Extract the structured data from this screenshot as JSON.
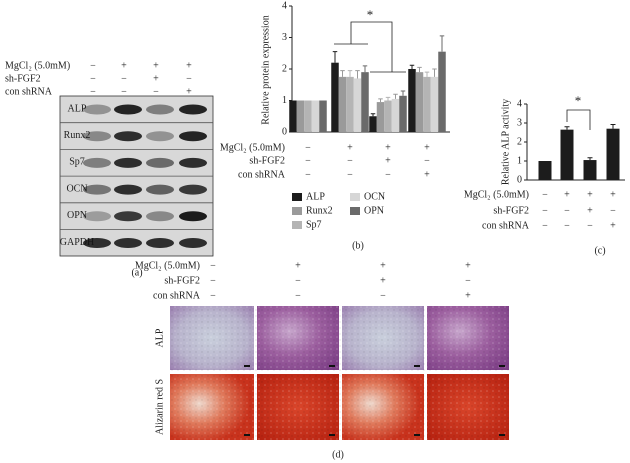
{
  "panel_a": {
    "conditions": [
      {
        "label": "MgCl₂ (5.0mM)",
        "signs": [
          "−",
          "+",
          "+",
          "+"
        ]
      },
      {
        "label": "sh-FGF2",
        "signs": [
          "−",
          "−",
          "+",
          "−"
        ]
      },
      {
        "label": "con shRNA",
        "signs": [
          "−",
          "−",
          "−",
          "+"
        ]
      }
    ],
    "blot_rows": [
      "ALP",
      "Runx2",
      "Sp7",
      "OCN",
      "OPN",
      "GAPDH"
    ],
    "label": "(a)"
  },
  "chart_data": [
    {
      "type": "bar",
      "y_label": "Relative protein expression",
      "ylim": [
        0,
        4
      ],
      "yticks": [
        0,
        1,
        2,
        3,
        4
      ],
      "conditions": [
        {
          "label": "MgCl₂ (5.0mM)",
          "signs": [
            "−",
            "+",
            "+",
            "+"
          ]
        },
        {
          "label": "sh-FGF2",
          "signs": [
            "−",
            "−",
            "+",
            "−"
          ]
        },
        {
          "label": "con shRNA",
          "signs": [
            "−",
            "−",
            "−",
            "+"
          ]
        }
      ],
      "series": [
        {
          "name": "ALP",
          "color": "#1c1c1c",
          "values": [
            1,
            2.2,
            0.5,
            2.0
          ],
          "errors": [
            0,
            0.35,
            0.08,
            0.12
          ]
        },
        {
          "name": "Runx2",
          "color": "#9a9a9a",
          "values": [
            1,
            1.75,
            0.95,
            1.9
          ],
          "errors": [
            0,
            0.2,
            0.1,
            0.15
          ]
        },
        {
          "name": "Sp7",
          "color": "#b4b4b4",
          "values": [
            1,
            1.75,
            1.0,
            1.75
          ],
          "errors": [
            0,
            0.2,
            0.1,
            0.15
          ]
        },
        {
          "name": "OCN",
          "color": "#d6d6d6",
          "values": [
            1,
            1.7,
            1.05,
            1.75
          ],
          "errors": [
            0,
            0.25,
            0.15,
            0.25
          ]
        },
        {
          "name": "OPN",
          "color": "#6a6a6a",
          "values": [
            1,
            1.9,
            1.15,
            2.55
          ],
          "errors": [
            0,
            0.2,
            0.15,
            0.5
          ]
        }
      ],
      "significance": "*",
      "legend": "bottom",
      "panel_label": "(b)"
    },
    {
      "type": "bar",
      "y_label": "Relative ALP activity",
      "ylim": [
        0,
        4
      ],
      "yticks": [
        0,
        1,
        2,
        3,
        4
      ],
      "conditions": [
        {
          "label": "MgCl₂ (5.0mM)",
          "signs": [
            "−",
            "+",
            "+",
            "+"
          ]
        },
        {
          "label": "sh-FGF2",
          "signs": [
            "−",
            "−",
            "+",
            "−"
          ]
        },
        {
          "label": "con shRNA",
          "signs": [
            "−",
            "−",
            "−",
            "+"
          ]
        }
      ],
      "values": [
        1,
        2.65,
        1.05,
        2.7
      ],
      "errors": [
        0,
        0.15,
        0.12,
        0.22
      ],
      "color": "#1c1c1c",
      "significance": "*",
      "panel_label": "(c)"
    }
  ],
  "panel_d": {
    "conditions": [
      {
        "label": "MgCl₂ (5.0mM)",
        "signs": [
          "−",
          "+",
          "+",
          "+"
        ]
      },
      {
        "label": "sh-FGF2",
        "signs": [
          "−",
          "−",
          "+",
          "−"
        ]
      },
      {
        "label": "con shRNA",
        "signs": [
          "−",
          "−",
          "−",
          "+"
        ]
      }
    ],
    "rows": [
      "ALP",
      "Alizarin red S"
    ],
    "label": "(d)"
  }
}
